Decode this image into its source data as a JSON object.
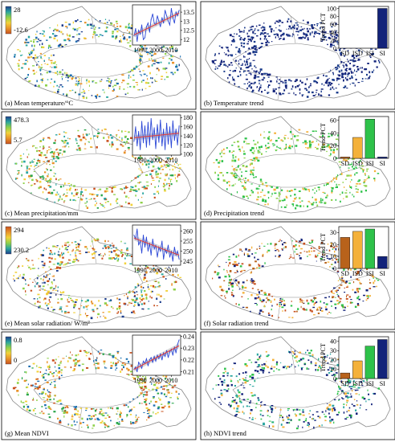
{
  "panels": [
    {
      "id": "a",
      "label": "(a) Mean temperature/°C",
      "legend": {
        "max": "28",
        "min": "-12.6",
        "stops": [
          "#1c3d8c",
          "#2aa6a0",
          "#8fd14a",
          "#f2d23a",
          "#e8932a",
          "#c8501e"
        ]
      }
    },
    {
      "id": "b",
      "label": "(b) Temperature trend"
    },
    {
      "id": "c",
      "label": "(c) Mean precipitation/mm",
      "legend": {
        "max": "478.3",
        "min": "5.7",
        "stops": [
          "#1c3d8c",
          "#2aa6a0",
          "#8fd14a",
          "#f2d23a",
          "#e8932a",
          "#c8501e"
        ]
      }
    },
    {
      "id": "d",
      "label": "(d) Precipitation trend"
    },
    {
      "id": "e",
      "label": "(e) Mean solar radiation/ W/m²",
      "legend": {
        "max": "294",
        "min": "230.2",
        "stops": [
          "#c8501e",
          "#e8932a",
          "#f2d23a",
          "#8fd14a",
          "#2aa6a0",
          "#1c3d8c"
        ]
      }
    },
    {
      "id": "f",
      "label": "(f) Solar radiation trend"
    },
    {
      "id": "g",
      "label": "(g) Mean NDVI",
      "legend": {
        "max": "0.8",
        "min": "0",
        "stops": [
          "#1c3d8c",
          "#2aa6a0",
          "#8fd14a",
          "#f2d23a",
          "#e8932a",
          "#c8501e"
        ]
      }
    },
    {
      "id": "h",
      "label": "(h) NDVI trend"
    }
  ],
  "colors": {
    "SD": "#b8621b",
    "ISD": "#f4b13a",
    "ISI": "#2ec24a",
    "SI": "#13237a",
    "series": "#2b47d6",
    "trend": "#e04040",
    "band": "#c8c8c8",
    "map_outline": "#888888"
  },
  "chart_data": [
    {
      "type": "line",
      "panel": "a",
      "x": [
        1986,
        1987,
        1988,
        1989,
        1990,
        1991,
        1992,
        1993,
        1994,
        1995,
        1996,
        1997,
        1998,
        1999,
        2000,
        2001,
        2002,
        2003,
        2004,
        2005,
        2006,
        2007,
        2008,
        2009,
        2010,
        2011,
        2012,
        2013,
        2014,
        2015
      ],
      "series": [
        {
          "values": [
            12.2,
            12.6,
            11.9,
            12.5,
            12.3,
            12.8,
            12.0,
            12.1,
            12.7,
            12.9,
            12.4,
            13.1,
            13.4,
            12.9,
            12.8,
            13.3,
            13.0,
            12.7,
            13.2,
            12.9,
            13.6,
            13.3,
            13.0,
            12.8,
            13.7,
            13.2,
            12.9,
            13.5,
            13.3,
            13.6
          ]
        }
      ],
      "trend": [
        12.25,
        13.45
      ],
      "xticks": [
        1990,
        2000,
        2010
      ],
      "yticks": [
        12.0,
        12.5,
        13.0,
        13.5
      ],
      "ylim": [
        11.7,
        13.9
      ]
    },
    {
      "type": "bar",
      "panel": "b",
      "categories": [
        "SD",
        "ISD",
        "ISI",
        "SI"
      ],
      "values": [
        0,
        0,
        0,
        100
      ],
      "ylabel": "Trend PCT",
      "yticks": [
        0,
        20,
        40,
        60,
        80,
        100
      ],
      "ylim": [
        0,
        105
      ]
    },
    {
      "type": "line",
      "panel": "c",
      "x": [
        1986,
        1987,
        1988,
        1989,
        1990,
        1991,
        1992,
        1993,
        1994,
        1995,
        1996,
        1997,
        1998,
        1999,
        2000,
        2001,
        2002,
        2003,
        2004,
        2005,
        2006,
        2007,
        2008,
        2009,
        2010,
        2011,
        2012,
        2013,
        2014,
        2015
      ],
      "series": [
        {
          "values": [
            128,
            160,
            118,
            150,
            110,
            172,
            125,
            162,
            115,
            170,
            120,
            178,
            132,
            158,
            112,
            165,
            126,
            175,
            118,
            155,
            110,
            168,
            122,
            160,
            114,
            173,
            130,
            155,
            120,
            162
          ]
        }
      ],
      "trend": [
        136,
        146
      ],
      "xticks": [
        1990,
        2000,
        2010
      ],
      "yticks": [
        100,
        120,
        140,
        160,
        180
      ],
      "ylim": [
        98,
        186
      ]
    },
    {
      "type": "bar",
      "panel": "d",
      "categories": [
        "SD",
        "ISD",
        "ISI",
        "SI"
      ],
      "values": [
        2,
        33,
        62,
        2
      ],
      "ylabel": "Trend PCT",
      "yticks": [
        0,
        20,
        40,
        60
      ],
      "ylim": [
        0,
        66
      ]
    },
    {
      "type": "line",
      "panel": "e",
      "x": [
        1986,
        1987,
        1988,
        1989,
        1990,
        1991,
        1992,
        1993,
        1994,
        1995,
        1996,
        1997,
        1998,
        1999,
        2000,
        2001,
        2002,
        2003,
        2004,
        2005,
        2006,
        2007,
        2008,
        2009,
        2010,
        2011,
        2012,
        2013,
        2014,
        2015
      ],
      "series": [
        {
          "values": [
            258,
            256,
            261,
            253,
            255,
            249,
            258,
            252,
            257,
            250,
            254,
            248,
            256,
            251,
            253,
            247,
            252,
            250,
            255,
            246,
            251,
            249,
            253,
            247,
            250,
            245,
            252,
            248,
            250,
            246
          ]
        }
      ],
      "trend": [
        256.5,
        248
      ],
      "xticks": [
        1990,
        2000,
        2010
      ],
      "yticks": [
        245,
        250,
        255,
        260
      ],
      "ylim": [
        243,
        263
      ]
    },
    {
      "type": "bar",
      "panel": "f",
      "categories": [
        "SD",
        "ISD",
        "ISI",
        "SI"
      ],
      "values": [
        26,
        31,
        33,
        10
      ],
      "ylabel": "Trend PCT",
      "yticks": [
        0,
        10,
        20,
        30
      ],
      "ylim": [
        0,
        35
      ]
    },
    {
      "type": "line",
      "panel": "g",
      "x": [
        1986,
        1987,
        1988,
        1989,
        1990,
        1991,
        1992,
        1993,
        1994,
        1995,
        1996,
        1997,
        1998,
        1999,
        2000,
        2001,
        2002,
        2003,
        2004,
        2005,
        2006,
        2007,
        2008,
        2009,
        2010,
        2011,
        2012,
        2013,
        2014,
        2015
      ],
      "series": [
        {
          "values": [
            0.212,
            0.214,
            0.21,
            0.218,
            0.216,
            0.213,
            0.219,
            0.217,
            0.221,
            0.215,
            0.22,
            0.222,
            0.218,
            0.223,
            0.219,
            0.224,
            0.221,
            0.225,
            0.22,
            0.226,
            0.223,
            0.228,
            0.222,
            0.227,
            0.229,
            0.224,
            0.231,
            0.226,
            0.233,
            0.237
          ]
        }
      ],
      "trend": [
        0.212,
        0.232
      ],
      "xticks": [
        1990,
        2000,
        2010
      ],
      "yticks": [
        0.21,
        0.22,
        0.23,
        0.24
      ],
      "ylim": [
        0.207,
        0.241
      ]
    },
    {
      "type": "bar",
      "panel": "h",
      "categories": [
        "SD",
        "ISD",
        "ISI",
        "SI"
      ],
      "values": [
        6,
        19,
        35,
        42
      ],
      "ylabel": "Trend PCT",
      "yticks": [
        0,
        10,
        20,
        30,
        40
      ],
      "ylim": [
        0,
        45
      ]
    }
  ]
}
